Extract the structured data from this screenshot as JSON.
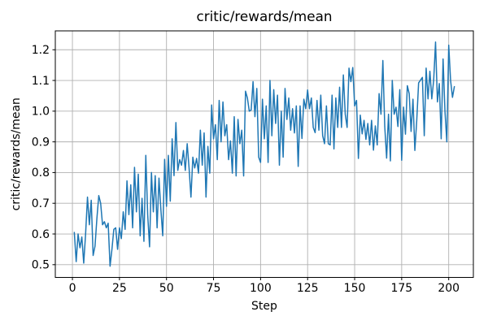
{
  "figure": {
    "title": "critic/rewards/mean",
    "xlabel": "Step",
    "ylabel": "critic/rewards/mean"
  },
  "chart_data": {
    "type": "line",
    "title": "critic/rewards/mean",
    "xlabel": "Step",
    "ylabel": "critic/rewards/mean",
    "grid": true,
    "legend": "none",
    "line_color": "#1f77b4",
    "grid_color": "#b0b0b0",
    "spine_color": "#000000",
    "xlim": [
      -9.1,
      213.1
    ],
    "ylim": [
      0.4585,
      1.2615
    ],
    "xticks": [
      0,
      25,
      50,
      75,
      100,
      125,
      150,
      175,
      200
    ],
    "yticks": [
      0.5,
      0.6,
      0.7,
      0.8,
      0.9,
      1.0,
      1.1,
      1.2
    ],
    "series": [
      {
        "name": "critic/rewards/mean",
        "x_start": 1,
        "x_step": 1,
        "values": [
          0.605,
          0.51,
          0.6,
          0.555,
          0.59,
          0.505,
          0.6,
          0.72,
          0.63,
          0.71,
          0.53,
          0.56,
          0.65,
          0.725,
          0.7,
          0.63,
          0.64,
          0.62,
          0.635,
          0.495,
          0.55,
          0.615,
          0.62,
          0.55,
          0.62,
          0.585,
          0.672,
          0.615,
          0.773,
          0.663,
          0.76,
          0.62,
          0.817,
          0.672,
          0.795,
          0.594,
          0.716,
          0.576,
          0.856,
          0.663,
          0.558,
          0.8,
          0.672,
          0.79,
          0.62,
          0.782,
          0.681,
          0.594,
          0.843,
          0.69,
          0.856,
          0.707,
          0.91,
          0.79,
          0.963,
          0.807,
          0.842,
          0.824,
          0.872,
          0.807,
          0.894,
          0.815,
          0.72,
          0.85,
          0.815,
          0.846,
          0.798,
          0.938,
          0.824,
          0.929,
          0.72,
          0.885,
          0.798,
          1.02,
          0.91,
          0.956,
          0.842,
          1.035,
          0.9,
          1.03,
          0.92,
          0.956,
          0.842,
          0.903,
          0.798,
          0.982,
          0.789,
          0.973,
          0.894,
          0.938,
          0.789,
          1.065,
          1.043,
          1.0,
          1.004,
          1.096,
          0.982,
          1.074,
          0.85,
          0.833,
          1.039,
          0.91,
          1.017,
          0.833,
          1.1,
          0.92,
          1.07,
          0.96,
          1.052,
          0.824,
          1.0,
          0.85,
          1.074,
          0.973,
          1.043,
          0.938,
          1.008,
          0.929,
          1.017,
          0.82,
          1.017,
          0.911,
          1.039,
          1.008,
          1.069,
          1.008,
          1.043,
          0.947,
          0.93,
          1.035,
          0.938,
          1.052,
          0.92,
          0.894,
          1.017,
          0.894,
          0.89,
          1.052,
          0.877,
          1.043,
          0.947,
          1.078,
          0.947,
          1.118,
          0.99,
          0.947,
          1.14,
          1.096,
          1.142,
          1.017,
          1.035,
          0.846,
          0.987,
          0.926,
          0.97,
          0.908,
          0.96,
          0.89,
          0.97,
          0.873,
          0.952,
          0.89,
          1.057,
          0.99,
          1.165,
          0.95,
          0.847,
          0.99,
          0.838,
          1.1,
          0.99,
          1.013,
          0.95,
          1.07,
          0.84,
          1.013,
          0.925,
          1.083,
          1.057,
          0.934,
          1.039,
          0.872,
          0.969,
          1.092,
          1.101,
          1.11,
          0.92,
          1.14,
          1.04,
          1.13,
          1.04,
          1.1,
          1.225,
          1.03,
          1.09,
          0.91,
          1.17,
          1.0,
          0.9,
          1.215,
          1.1,
          1.045,
          1.08
        ]
      }
    ]
  }
}
